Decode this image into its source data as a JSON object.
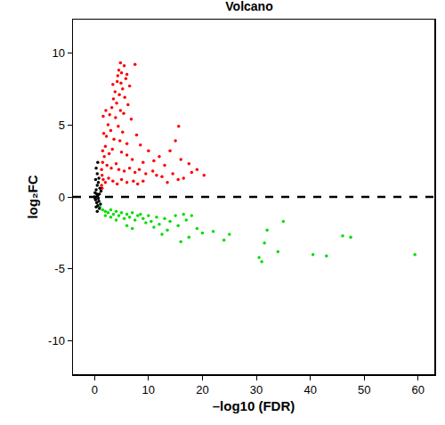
{
  "chart_data": {
    "type": "scatter",
    "title": "Volcano",
    "x_label": "–log10 (FDR)",
    "y_label": "log₂FC",
    "xlim": [
      -4,
      63
    ],
    "ylim": [
      -12.3,
      12.3
    ],
    "xticks": [
      0,
      10,
      20,
      30,
      40,
      50,
      60
    ],
    "yticks": [
      -10,
      -5,
      0,
      5,
      10
    ],
    "grid": false,
    "reference_line": 0,
    "series": [
      {
        "color": "#ff0000",
        "x": [
          4.8,
          5.5,
          7.5,
          4.5,
          5,
          6,
          5.8,
          4.2,
          4.9,
          6.5,
          5.2,
          3.8,
          4.6,
          5.6,
          3.5,
          4.1,
          6.2,
          3.2,
          4.8,
          5.4,
          2.8,
          3.9,
          6.8,
          2.5,
          4.4,
          3,
          5.2,
          7.8,
          2.2,
          3.6,
          4.7,
          6,
          8.5,
          2,
          3.3,
          10,
          15.6,
          15,
          14,
          12,
          16,
          17.5,
          11,
          13,
          9,
          7,
          6,
          5,
          2.7,
          1.8,
          1.5,
          2.3,
          3.1,
          4,
          4.5,
          5.5,
          6.5,
          7.5,
          8.3,
          9.5,
          10.8,
          11.5,
          12.5,
          14.5,
          16.5,
          18,
          19,
          20.3,
          1.4,
          1.6,
          2,
          2.6,
          3.4,
          4.2,
          5,
          6,
          7.2,
          8,
          1.3,
          1.5,
          1.7,
          1.6,
          2.1,
          3.4,
          4.3,
          1.3,
          1.4,
          9,
          13.5,
          15.5
        ],
        "y": [
          9.3,
          9.1,
          9.2,
          8.8,
          8.6,
          8.5,
          8.2,
          8.0,
          7.9,
          7.7,
          7.5,
          7.3,
          7.1,
          6.9,
          6.8,
          6.5,
          6.4,
          6.2,
          6.0,
          5.8,
          5.7,
          5.5,
          5.4,
          5.0,
          4.9,
          4.6,
          4.5,
          4.3,
          4.2,
          4.0,
          3.9,
          3.7,
          3.6,
          3.5,
          3.3,
          3.2,
          4.9,
          3.9,
          3.2,
          2.8,
          2.6,
          2.3,
          2.5,
          2.2,
          2.4,
          2.6,
          2.9,
          3.1,
          3.0,
          2.8,
          2.4,
          2.2,
          2.0,
          2.3,
          1.9,
          1.8,
          2.0,
          1.7,
          1.9,
          1.6,
          1.8,
          1.5,
          1.4,
          1.6,
          1.3,
          1.7,
          1.9,
          1.5,
          1.5,
          1.2,
          1.0,
          1.3,
          1.1,
          0.9,
          1.2,
          1.0,
          1.1,
          0.9,
          1.9,
          3.2,
          4.4,
          5.6,
          6.0,
          7.8,
          8.4,
          0.8,
          0.6,
          1.1,
          1.0,
          1.2
        ]
      },
      {
        "color": "#00dd00",
        "x": [
          1,
          1.5,
          2,
          2.5,
          3,
          3.5,
          4,
          4.5,
          5,
          5.5,
          6,
          6.5,
          7,
          7.5,
          8,
          8.5,
          9,
          9.5,
          10,
          10.5,
          11,
          11.5,
          12,
          12.5,
          13,
          13.5,
          14,
          15,
          15.5,
          16,
          16.5,
          17,
          17.5,
          18,
          19,
          20,
          22,
          24,
          25,
          30.5,
          31,
          31.5,
          32,
          34,
          35,
          40.5,
          43,
          46,
          47.5,
          59.4,
          6,
          4,
          3,
          2,
          7
        ],
        "y": [
          -0.7,
          -0.9,
          -1.0,
          -1.1,
          -0.9,
          -1.2,
          -1.0,
          -1.3,
          -1.1,
          -1.5,
          -1.2,
          -1.4,
          -1.1,
          -1.6,
          -1.3,
          -1.2,
          -1.5,
          -1.8,
          -1.3,
          -1.7,
          -2.1,
          -1.4,
          -1.9,
          -2.6,
          -1.5,
          -2.3,
          -1.7,
          -1.3,
          -2.0,
          -3.1,
          -1.2,
          -1.6,
          -2.8,
          -1.3,
          -2.2,
          -2.5,
          -2.4,
          -3.0,
          -2.6,
          -4.2,
          -4.5,
          -3.2,
          -2.3,
          -3.8,
          -1.7,
          -4.0,
          -4.1,
          -2.7,
          -2.8,
          -4.0,
          -2.0,
          -1.6,
          -1.4,
          -1.3,
          -2.2
        ]
      },
      {
        "color": "#000000",
        "x": [
          0,
          0.1,
          0.2,
          0.3,
          0.4,
          0.5,
          0.6,
          0.7,
          0.8,
          0.9,
          1.0,
          1.1,
          0.2,
          0.3,
          0.5,
          0.6,
          0.4,
          0.8,
          0.1,
          0.9,
          0.7,
          1.2,
          0.5,
          0.3,
          0.6
        ],
        "y": [
          0,
          0.3,
          -0.2,
          0.5,
          -0.4,
          0.8,
          -0.6,
          1.0,
          -0.3,
          0.2,
          0.6,
          -0.5,
          1.2,
          -0.7,
          1.6,
          0.1,
          0.2,
          1.3,
          -0.1,
          -0.8,
          -0.1,
          0.4,
          -1.0,
          2.0,
          2.4
        ]
      }
    ]
  }
}
